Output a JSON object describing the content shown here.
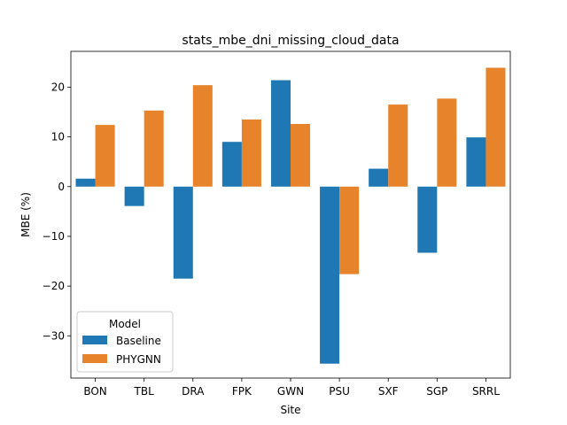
{
  "chart_data": {
    "type": "bar",
    "title": "stats_mbe_dni_missing_cloud_data",
    "xlabel": "Site",
    "ylabel": "MBE (%)",
    "categories": [
      "BON",
      "TBL",
      "DRA",
      "FPK",
      "GWN",
      "PSU",
      "SXF",
      "SGP",
      "SRRL"
    ],
    "series": [
      {
        "name": "Baseline",
        "color": "#1f77b4",
        "values": [
          1.6,
          -3.9,
          -18.5,
          9.0,
          21.4,
          -35.6,
          3.6,
          -13.3,
          9.9
        ]
      },
      {
        "name": "PHYGNN",
        "color": "#e6832b",
        "values": [
          12.4,
          15.3,
          20.4,
          13.5,
          12.6,
          -17.6,
          16.5,
          17.7,
          23.9
        ]
      }
    ],
    "ylim": [
      -38.5,
      27.2
    ],
    "yticks": [
      -30,
      -20,
      -10,
      0,
      10,
      20
    ],
    "ytick_labels": [
      "−30",
      "−20",
      "−10",
      "0",
      "10",
      "20"
    ],
    "legend": {
      "title": "Model",
      "placement": "lower-left"
    },
    "grid": false
  }
}
